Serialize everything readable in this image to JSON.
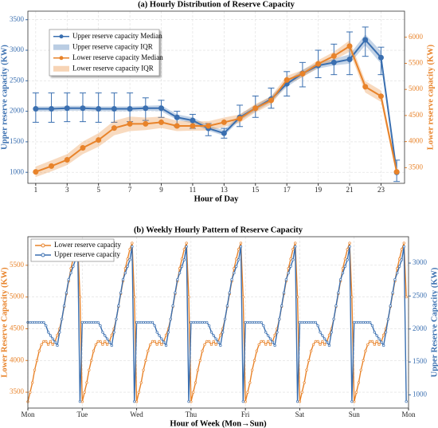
{
  "chart_data": [
    {
      "type": "line",
      "title": "(a) Hourly Distribution of Reserve Capacity",
      "xlabel": "Hour of Day",
      "ylabel": "Upper reserve capacity (KW)",
      "y2label": "Lower reserve capacity (KW)",
      "x": [
        1,
        2,
        3,
        4,
        5,
        6,
        7,
        8,
        9,
        10,
        11,
        12,
        13,
        14,
        15,
        16,
        17,
        18,
        19,
        20,
        21,
        22,
        23,
        24
      ],
      "xlim": [
        0.5,
        24.5
      ],
      "xticks": [
        1,
        3,
        5,
        7,
        9,
        11,
        13,
        15,
        17,
        19,
        21,
        23
      ],
      "ylim": [
        820,
        3640
      ],
      "yticks": [
        1000,
        1500,
        2000,
        2500,
        3000,
        3500
      ],
      "y2lim": [
        3200,
        6500
      ],
      "y2ticks": [
        3500,
        4000,
        4500,
        5000,
        5500,
        6000
      ],
      "grid": true,
      "legend": "upper left",
      "series": [
        {
          "name": "Upper reserve capacity Median",
          "color": "#3a6fb0",
          "axis": "y",
          "values": [
            2040,
            2040,
            2050,
            2050,
            2040,
            2040,
            2040,
            2050,
            2050,
            1900,
            1850,
            1720,
            1640,
            1900,
            2050,
            2200,
            2450,
            2620,
            2750,
            2800,
            2850,
            3170,
            2880,
            1000
          ],
          "band_name": "Upper reserve capacity IQR",
          "iqr_low": [
            2000,
            2000,
            2010,
            2010,
            2000,
            2000,
            2000,
            2010,
            2000,
            1860,
            1800,
            1680,
            1600,
            1850,
            2000,
            2150,
            2400,
            2570,
            2700,
            2750,
            2780,
            3080,
            2780,
            950
          ],
          "iqr_high": [
            2080,
            2080,
            2090,
            2090,
            2080,
            2080,
            2080,
            2090,
            2100,
            1950,
            1900,
            1770,
            1690,
            1950,
            2100,
            2250,
            2500,
            2680,
            2800,
            2860,
            2930,
            3260,
            2980,
            1060
          ],
          "whisker_low": [
            1820,
            1820,
            1830,
            1830,
            1820,
            1820,
            1830,
            1850,
            1900,
            1750,
            1720,
            1600,
            1560,
            1750,
            1900,
            2050,
            2250,
            2400,
            2550,
            2600,
            2600,
            2900,
            2600,
            850
          ],
          "whisker_high": [
            2300,
            2300,
            2300,
            2300,
            2300,
            2300,
            2300,
            2220,
            2180,
            2000,
            1950,
            1800,
            1720,
            2100,
            2250,
            2380,
            2650,
            2800,
            3000,
            3100,
            3300,
            3380,
            3050,
            1200
          ]
        },
        {
          "name": "Lower reserve capacity Median",
          "color": "#e8832a",
          "axis": "y2",
          "values": [
            3420,
            3530,
            3650,
            3880,
            4030,
            4260,
            4340,
            4340,
            4370,
            4300,
            4300,
            4300,
            4370,
            4440,
            4640,
            4790,
            5180,
            5300,
            5490,
            5640,
            5830,
            5050,
            4870,
            3420
          ],
          "band_name": "Lower reserve capacity IQR",
          "iqr_low": [
            3320,
            3430,
            3550,
            3760,
            3900,
            4120,
            4200,
            4220,
            4260,
            4200,
            4210,
            4210,
            4280,
            4360,
            4560,
            4710,
            5100,
            5230,
            5420,
            5560,
            5720,
            4940,
            4760,
            3340
          ],
          "iqr_high": [
            3520,
            3640,
            3760,
            4000,
            4160,
            4400,
            4480,
            4460,
            4480,
            4400,
            4390,
            4390,
            4460,
            4520,
            4720,
            4870,
            5260,
            5370,
            5560,
            5720,
            5940,
            5160,
            4980,
            3500
          ]
        }
      ]
    },
    {
      "type": "line",
      "title": "(b) Weekly Hourly Pattern of Reserve Capacity",
      "xlabel": "Hour of Week (Mon→Sun)",
      "ylabel": "Lower Reserve Capacity (KW)",
      "y2label": "Upper Reserve Capacity (KW)",
      "x": [
        0,
        1,
        2,
        3,
        4,
        5,
        6,
        7,
        8,
        9,
        10,
        11,
        12,
        13,
        14,
        15,
        16,
        17,
        18,
        19,
        20,
        21,
        22,
        23,
        24,
        25,
        26,
        27,
        28,
        29,
        30,
        31,
        32,
        33,
        34,
        35,
        36,
        37,
        38,
        39,
        40,
        41,
        42,
        43,
        44,
        45,
        46,
        47,
        48,
        49,
        50,
        51,
        52,
        53,
        54,
        55,
        56,
        57,
        58,
        59,
        60,
        61,
        62,
        63,
        64,
        65,
        66,
        67,
        68,
        69,
        70,
        71,
        72,
        73,
        74,
        75,
        76,
        77,
        78,
        79,
        80,
        81,
        82,
        83,
        84,
        85,
        86,
        87,
        88,
        89,
        90,
        91,
        92,
        93,
        94,
        95,
        96,
        97,
        98,
        99,
        100,
        101,
        102,
        103,
        104,
        105,
        106,
        107,
        108,
        109,
        110,
        111,
        112,
        113,
        114,
        115,
        116,
        117,
        118,
        119,
        120,
        121,
        122,
        123,
        124,
        125,
        126,
        127,
        128,
        129,
        130,
        131,
        132,
        133,
        134,
        135,
        136,
        137,
        138,
        139,
        140,
        141,
        142,
        143,
        144,
        145,
        146,
        147,
        148,
        149,
        150,
        151,
        152,
        153,
        154,
        155,
        156,
        157,
        158,
        159,
        160,
        161,
        162,
        163,
        164,
        165,
        166,
        167
      ],
      "xlim": [
        0,
        168
      ],
      "xticks": [
        {
          "value": 0,
          "label": "Mon"
        },
        {
          "value": 24,
          "label": "Tue"
        },
        {
          "value": 48,
          "label": "Wed"
        },
        {
          "value": 72,
          "label": "Thu"
        },
        {
          "value": 96,
          "label": "Fri"
        },
        {
          "value": 120,
          "label": "Sat"
        },
        {
          "value": 144,
          "label": "Sun"
        },
        {
          "value": 168,
          "label": "Mon"
        }
      ],
      "ylim": [
        3250,
        5950
      ],
      "yticks": [
        3500,
        4000,
        4500,
        5000,
        5500
      ],
      "y2lim": [
        800,
        3400
      ],
      "y2ticks": [
        1000,
        1500,
        2000,
        2500,
        3000
      ],
      "grid": true,
      "legend": "upper left",
      "series": [
        {
          "name": "Lower reserve capacity",
          "color": "#e8832a",
          "axis": "y",
          "values": [
            3350,
            3500,
            3650,
            3850,
            4000,
            4150,
            4250,
            4300,
            4300,
            4250,
            4300,
            4250,
            4300,
            4400,
            4500,
            4650,
            4850,
            5050,
            5250,
            5450,
            5600,
            5750,
            5850,
            5000,
            3350,
            3500,
            3650,
            3850,
            4000,
            4150,
            4250,
            4300,
            4300,
            4250,
            4300,
            4250,
            4300,
            4400,
            4500,
            4650,
            4850,
            5050,
            5250,
            5450,
            5600,
            5750,
            5850,
            5000,
            3350,
            3500,
            3650,
            3850,
            4000,
            4150,
            4250,
            4300,
            4300,
            4250,
            4300,
            4250,
            4300,
            4400,
            4500,
            4650,
            4850,
            5050,
            5250,
            5450,
            5600,
            5750,
            5850,
            5000,
            3350,
            3500,
            3650,
            3850,
            4000,
            4150,
            4250,
            4300,
            4300,
            4250,
            4300,
            4250,
            4300,
            4400,
            4500,
            4650,
            4850,
            5050,
            5250,
            5450,
            5600,
            5750,
            5850,
            5000,
            3350,
            3500,
            3650,
            3850,
            4000,
            4150,
            4250,
            4300,
            4300,
            4250,
            4300,
            4250,
            4300,
            4400,
            4500,
            4650,
            4850,
            5050,
            5250,
            5450,
            5600,
            5750,
            5850,
            5000,
            3350,
            3500,
            3650,
            3850,
            4000,
            4150,
            4250,
            4300,
            4300,
            4250,
            4300,
            4250,
            4300,
            4400,
            4500,
            4650,
            4850,
            5050,
            5250,
            5450,
            5600,
            5750,
            5850,
            5000,
            3350,
            3500,
            3650,
            3850,
            4000,
            4150,
            4250,
            4300,
            4300,
            4250,
            4300,
            4250,
            4300,
            4400,
            4500,
            4650,
            4850,
            5050,
            5250,
            5450,
            5600,
            5750,
            5850,
            5000
          ]
        },
        {
          "name": "Upper reserve capacity",
          "color": "#3a6fb0",
          "axis": "y2",
          "values": [
            2100,
            2100,
            2100,
            2100,
            2100,
            2100,
            2100,
            2100,
            2050,
            1950,
            1900,
            1850,
            1800,
            1750,
            1950,
            2150,
            2350,
            2550,
            2750,
            2850,
            2950,
            3050,
            3250,
            900,
            2100,
            2100,
            2100,
            2100,
            2100,
            2100,
            2100,
            2100,
            2050,
            1950,
            1900,
            1850,
            1800,
            1750,
            1950,
            2150,
            2350,
            2550,
            2750,
            2850,
            2950,
            3050,
            3250,
            900,
            2100,
            2100,
            2100,
            2100,
            2100,
            2100,
            2100,
            2100,
            2050,
            1950,
            1900,
            1850,
            1800,
            1750,
            1950,
            2150,
            2350,
            2550,
            2750,
            2850,
            2950,
            3050,
            3250,
            900,
            2100,
            2100,
            2100,
            2100,
            2100,
            2100,
            2100,
            2100,
            2050,
            1950,
            1900,
            1850,
            1800,
            1750,
            1950,
            2150,
            2350,
            2550,
            2750,
            2850,
            2950,
            3050,
            3250,
            900,
            2100,
            2100,
            2100,
            2100,
            2100,
            2100,
            2100,
            2100,
            2050,
            1950,
            1900,
            1850,
            1800,
            1750,
            1950,
            2150,
            2350,
            2550,
            2750,
            2850,
            2950,
            3050,
            3250,
            900,
            2100,
            2100,
            2100,
            2100,
            2100,
            2100,
            2100,
            2100,
            2050,
            1950,
            1900,
            1850,
            1800,
            1750,
            1950,
            2150,
            2350,
            2550,
            2750,
            2850,
            2950,
            3050,
            3250,
            900,
            2100,
            2100,
            2100,
            2100,
            2100,
            2100,
            2100,
            2100,
            2050,
            1950,
            1900,
            1850,
            1800,
            1750,
            1950,
            2150,
            2350,
            2550,
            2750,
            2850,
            2950,
            3050,
            3250,
            900
          ]
        }
      ]
    }
  ]
}
